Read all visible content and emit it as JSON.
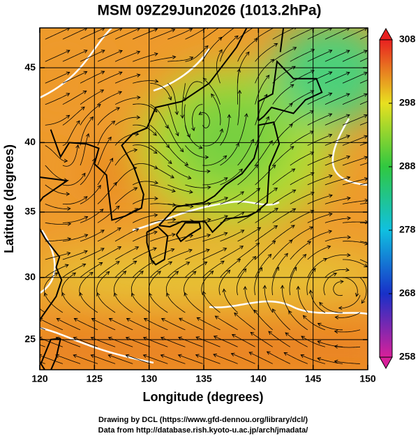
{
  "chart_data": {
    "type": "map",
    "title": "MSM 09Z29Jun2026 (1013.2hPa)",
    "x_label": "Longitude (degrees)",
    "y_label": "Latitude  (degrees)",
    "projection": "mercator",
    "xlim": [
      120,
      150
    ],
    "ylim": [
      22.5,
      47.5
    ],
    "xticks": [
      120,
      125,
      130,
      135,
      140,
      145,
      150
    ],
    "yticks": [
      25,
      30,
      35,
      40,
      45
    ],
    "grid": true,
    "colorbar": {
      "lim": [
        258,
        308
      ],
      "ticks": [
        258,
        268,
        278,
        288,
        298,
        308
      ],
      "colors": [
        "#d8209a",
        "#1830c8",
        "#10c0e0",
        "#30c840",
        "#e8e020",
        "#e82020"
      ]
    }
  },
  "footer": [
    "Drawing by DCL (https://www.gfd-dennou.org/library/dcl/)",
    "Data from http://database.rish.kyoto-u.ac.jp/arch/jmadata/"
  ]
}
